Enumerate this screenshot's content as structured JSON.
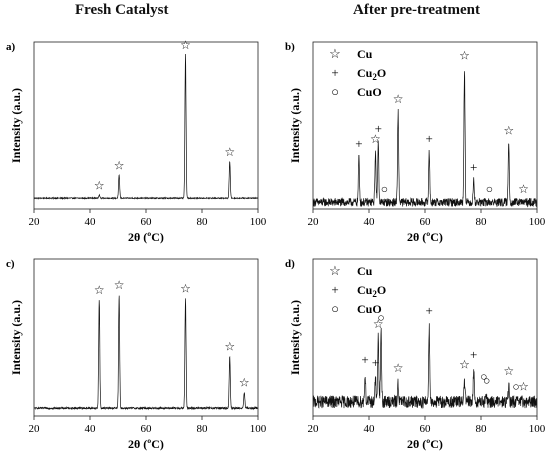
{
  "headers": {
    "left": "Fresh Catalyst",
    "right": "After pre-treatment"
  },
  "chart_data": [
    {
      "panel": "a)",
      "type": "line",
      "xlabel": "2θ (ºC)",
      "ylabel": "Intensity (a.u.)",
      "xlim": [
        20,
        100
      ],
      "ylim": [
        0,
        1
      ],
      "xticks": [
        20,
        40,
        60,
        80,
        100
      ],
      "grid": false,
      "baseline": 0.065,
      "noise": 0.003,
      "peaks": [
        {
          "x": 43.3,
          "h": 0.02
        },
        {
          "x": 50.4,
          "h": 0.14
        },
        {
          "x": 74.1,
          "h": 0.86
        },
        {
          "x": 89.9,
          "h": 0.22
        }
      ],
      "markers": [
        {
          "x": 43.3,
          "symbol": "☆"
        },
        {
          "x": 50.4,
          "symbol": "☆"
        },
        {
          "x": 74.1,
          "symbol": "☆"
        },
        {
          "x": 89.9,
          "symbol": "☆"
        }
      ]
    },
    {
      "panel": "b)",
      "type": "line",
      "xlabel": "2θ (ºC)",
      "ylabel": "Intensity (a.u.)",
      "xlim": [
        20,
        100
      ],
      "ylim": [
        0,
        1
      ],
      "xticks": [
        20,
        40,
        60,
        80,
        100
      ],
      "grid": false,
      "baseline": 0.04,
      "noise": 0.025,
      "legend": [
        {
          "symbol": "☆",
          "label": "Cu"
        },
        {
          "symbol": "+",
          "label": "Cu",
          "sub": "2",
          "tail": "O"
        },
        {
          "symbol": "○",
          "label": "CuO"
        }
      ],
      "peaks": [
        {
          "x": 36.4,
          "h": 0.27
        },
        {
          "x": 42.3,
          "h": 0.3
        },
        {
          "x": 43.3,
          "h": 0.36
        },
        {
          "x": 50.4,
          "h": 0.54
        },
        {
          "x": 61.5,
          "h": 0.3
        },
        {
          "x": 74.1,
          "h": 0.8
        },
        {
          "x": 77.4,
          "h": 0.13
        },
        {
          "x": 89.9,
          "h": 0.35
        }
      ],
      "markers": [
        {
          "x": 36.4,
          "symbol": "+"
        },
        {
          "x": 42.3,
          "symbol": "☆"
        },
        {
          "x": 43.3,
          "symbol": "+"
        },
        {
          "x": 45.5,
          "symbol": "○"
        },
        {
          "x": 50.4,
          "symbol": "☆"
        },
        {
          "x": 61.5,
          "symbol": "+"
        },
        {
          "x": 74.1,
          "symbol": "☆"
        },
        {
          "x": 77.4,
          "symbol": "+"
        },
        {
          "x": 83.0,
          "symbol": "○"
        },
        {
          "x": 89.9,
          "symbol": "☆"
        },
        {
          "x": 95.2,
          "symbol": "☆"
        }
      ]
    },
    {
      "panel": "c)",
      "type": "line",
      "xlabel": "2θ (ºC)",
      "ylabel": "Intensity (a.u.)",
      "xlim": [
        20,
        100
      ],
      "ylim": [
        0,
        1
      ],
      "xticks": [
        20,
        40,
        60,
        80,
        100
      ],
      "grid": false,
      "baseline": 0.05,
      "noise": 0.006,
      "peaks": [
        {
          "x": 43.3,
          "h": 0.69
        },
        {
          "x": 50.4,
          "h": 0.72
        },
        {
          "x": 74.1,
          "h": 0.7
        },
        {
          "x": 89.9,
          "h": 0.33
        },
        {
          "x": 95.1,
          "h": 0.1
        }
      ],
      "markers": [
        {
          "x": 43.3,
          "symbol": "☆"
        },
        {
          "x": 50.4,
          "symbol": "☆"
        },
        {
          "x": 74.1,
          "symbol": "☆"
        },
        {
          "x": 89.9,
          "symbol": "☆"
        },
        {
          "x": 95.1,
          "symbol": "☆"
        }
      ]
    },
    {
      "panel": "d)",
      "type": "line",
      "xlabel": "2θ (ºC)",
      "ylabel": "Intensity (a.u.)",
      "xlim": [
        20,
        100
      ],
      "ylim": [
        0,
        1
      ],
      "xticks": [
        20,
        40,
        60,
        80,
        100
      ],
      "grid": false,
      "baseline": 0.09,
      "noise": 0.04,
      "legend": [
        {
          "symbol": "☆",
          "label": "Cu"
        },
        {
          "symbol": "+",
          "label": "Cu",
          "sub": "2",
          "tail": "O"
        },
        {
          "symbol": "○",
          "label": "CuO"
        }
      ],
      "peaks": [
        {
          "x": 38.6,
          "h": 0.17
        },
        {
          "x": 42.3,
          "h": 0.15
        },
        {
          "x": 43.3,
          "h": 0.4
        },
        {
          "x": 44.3,
          "h": 0.44
        },
        {
          "x": 50.4,
          "h": 0.12
        },
        {
          "x": 61.5,
          "h": 0.48
        },
        {
          "x": 74.1,
          "h": 0.14
        },
        {
          "x": 77.4,
          "h": 0.2
        },
        {
          "x": 82.0,
          "h": 0.04
        },
        {
          "x": 89.9,
          "h": 0.1
        }
      ],
      "markers": [
        {
          "x": 38.6,
          "symbol": "+"
        },
        {
          "x": 42.3,
          "symbol": "+"
        },
        {
          "x": 43.3,
          "symbol": "☆"
        },
        {
          "x": 44.3,
          "symbol": "○"
        },
        {
          "x": 50.4,
          "symbol": "☆"
        },
        {
          "x": 61.5,
          "symbol": "+"
        },
        {
          "x": 74.1,
          "symbol": "☆"
        },
        {
          "x": 77.4,
          "symbol": "+"
        },
        {
          "x": 81.0,
          "symbol": "○"
        },
        {
          "x": 82.0,
          "symbol": "○"
        },
        {
          "x": 89.9,
          "symbol": "☆"
        },
        {
          "x": 92.5,
          "symbol": "○"
        },
        {
          "x": 95.2,
          "symbol": "☆"
        }
      ]
    }
  ]
}
